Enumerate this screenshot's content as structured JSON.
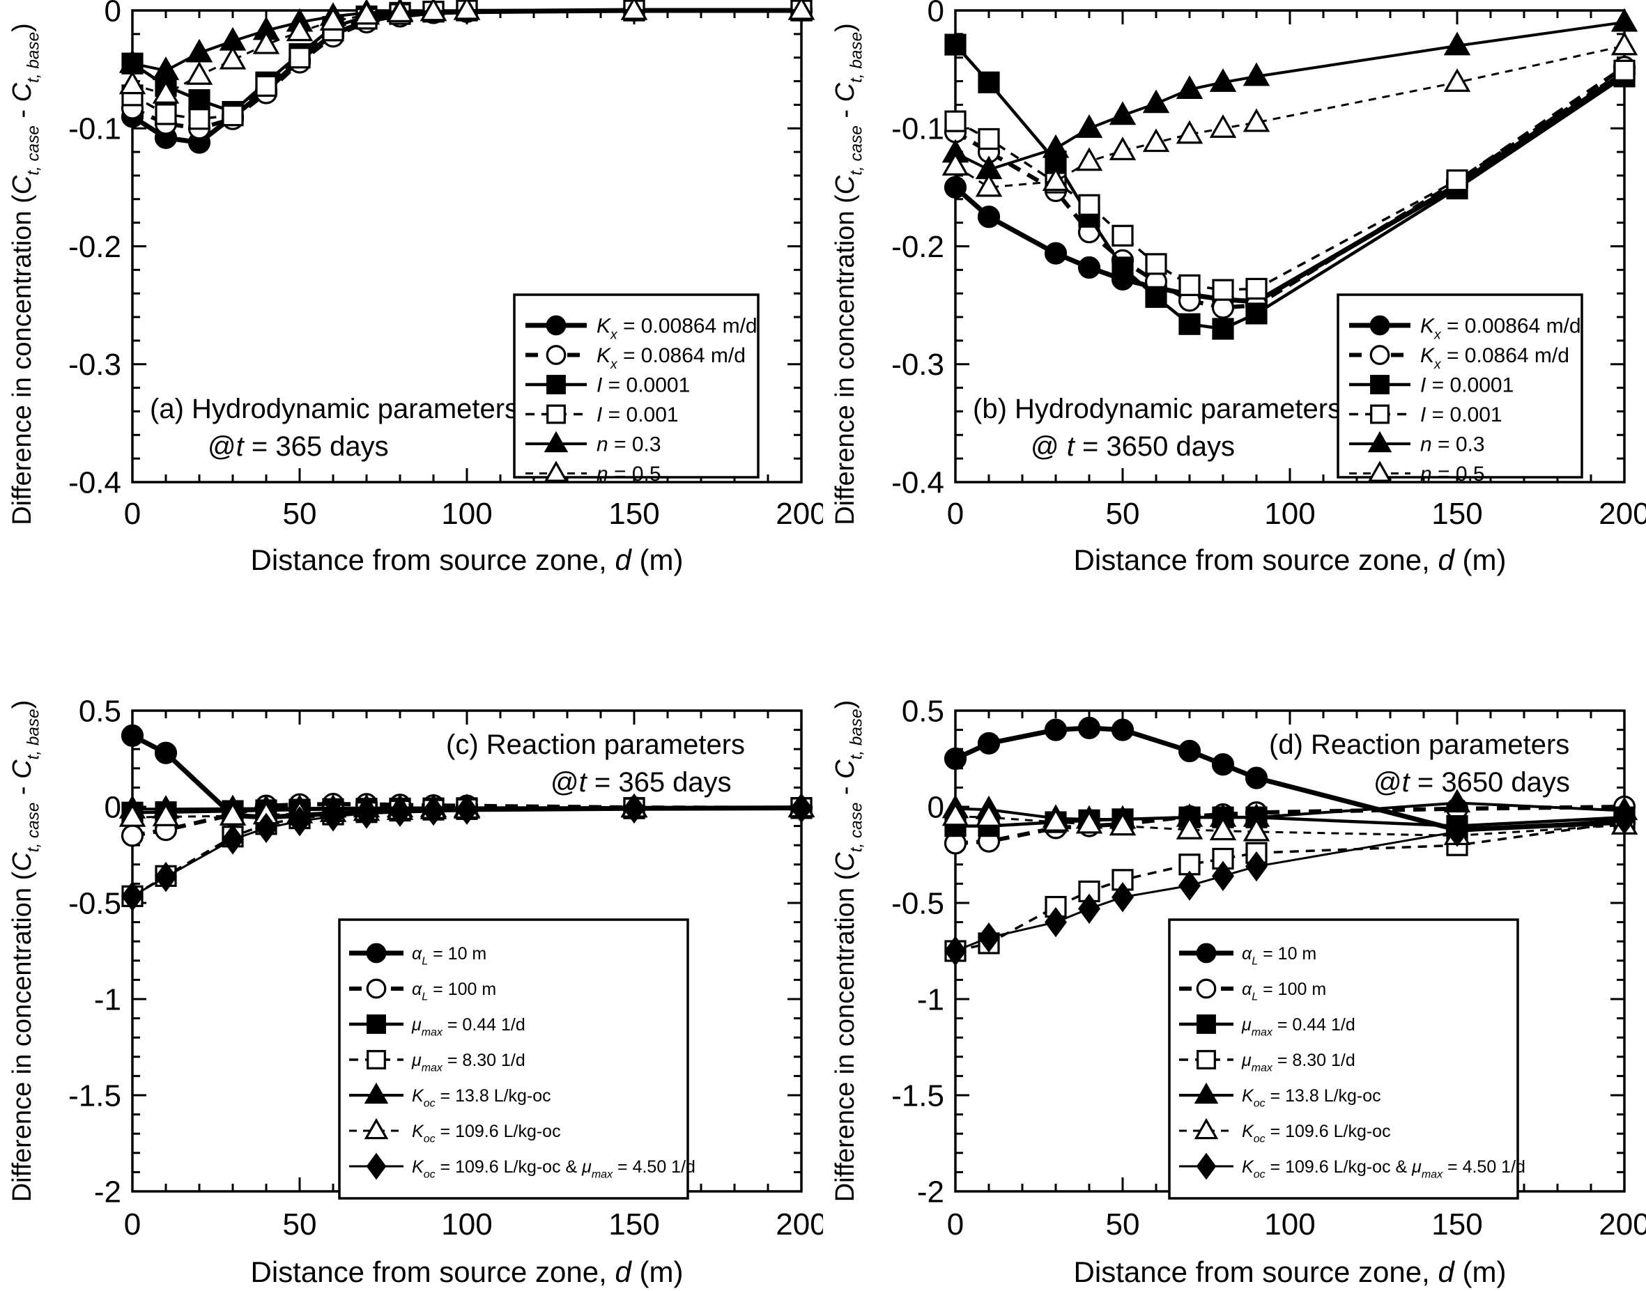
{
  "figure": {
    "background_color": "#ffffff",
    "ink_color": "#000000",
    "ylabel": "Difference in concentration (*C*_{t, case} - *C*_{t, base})",
    "xlabel": "Distance from source zone, *d* (m)"
  },
  "chart_data": [
    {
      "id": "a",
      "type": "line",
      "title_lines": [
        "(a) Hydrodynamic parameters",
        "@*t* = 365 days"
      ],
      "xlabel": "Distance from source zone, *d* (m)",
      "ylabel": "Difference in concentration (*C*_{t, case} - *C*_{t, base})",
      "xlim": [
        0,
        200
      ],
      "ylim": [
        -0.4,
        0
      ],
      "x_major_ticks": [
        0,
        50,
        100,
        150,
        200
      ],
      "x_minor_step": 10,
      "y_ticks": [
        {
          "v": 0,
          "label": "0"
        },
        {
          "v": -0.1,
          "label": "-0.1"
        },
        {
          "v": -0.2,
          "label": "-0.2"
        },
        {
          "v": -0.3,
          "label": "-0.3"
        },
        {
          "v": -0.4,
          "label": "-0.4"
        }
      ],
      "y_minor_step": 0.02,
      "grid": false,
      "legend_position": "inside-lower-right",
      "x": [
        0,
        10,
        20,
        30,
        40,
        50,
        60,
        70,
        80,
        90,
        100,
        150,
        200
      ],
      "series": [
        {
          "name": "*K*_{x} = 0.00864 m/d",
          "marker": "circle-filled",
          "line": "solid-thick",
          "y": [
            -0.09,
            -0.108,
            -0.112,
            -0.09,
            -0.068,
            -0.042,
            -0.02,
            -0.009,
            -0.004,
            -0.002,
            -0.001,
            0,
            0
          ]
        },
        {
          "name": "*K*_{x} = 0.0864 m/d",
          "marker": "circle-open",
          "line": "dashed-thick",
          "y": [
            -0.083,
            -0.096,
            -0.1,
            -0.092,
            -0.07,
            -0.044,
            -0.022,
            -0.01,
            -0.005,
            -0.002,
            -0.001,
            0,
            0
          ]
        },
        {
          "name": "*I* = 0.0001",
          "marker": "square-filled",
          "line": "solid",
          "y": [
            -0.045,
            -0.064,
            -0.076,
            -0.086,
            -0.061,
            -0.037,
            -0.014,
            -0.005,
            -0.002,
            -0.001,
            0,
            0,
            0
          ]
        },
        {
          "name": "*I* = 0.001",
          "marker": "square-open",
          "line": "dashed",
          "y": [
            -0.072,
            -0.088,
            -0.092,
            -0.089,
            -0.064,
            -0.04,
            -0.017,
            -0.007,
            -0.003,
            -0.001,
            0,
            0,
            0
          ]
        },
        {
          "name": "*n* = 0.3",
          "marker": "triangle-filled",
          "line": "solid-med",
          "y": [
            -0.045,
            -0.051,
            -0.036,
            -0.026,
            -0.017,
            -0.01,
            -0.005,
            -0.002,
            -0.001,
            -0.001,
            0,
            0,
            0
          ]
        },
        {
          "name": "*n* = 0.5",
          "marker": "triangle-open",
          "line": "dashed-thin",
          "y": [
            -0.063,
            -0.071,
            -0.055,
            -0.042,
            -0.029,
            -0.018,
            -0.009,
            -0.004,
            -0.002,
            -0.001,
            0,
            0,
            0
          ]
        }
      ]
    },
    {
      "id": "b",
      "type": "line",
      "title_lines": [
        "(b) Hydrodynamic parameters",
        "@ *t* = 3650 days"
      ],
      "xlabel": "Distance from source zone, *d* (m)",
      "ylabel": "Difference in concentration (*C*_{t, case} - *C*_{t, base})",
      "xlim": [
        0,
        200
      ],
      "ylim": [
        -0.4,
        0
      ],
      "x_major_ticks": [
        0,
        50,
        100,
        150,
        200
      ],
      "x_minor_step": 10,
      "y_ticks": [
        {
          "v": 0,
          "label": "0"
        },
        {
          "v": -0.1,
          "label": "-0.1"
        },
        {
          "v": -0.2,
          "label": "-0.2"
        },
        {
          "v": -0.3,
          "label": "-0.3"
        },
        {
          "v": -0.4,
          "label": "-0.4"
        }
      ],
      "y_minor_step": 0.02,
      "grid": false,
      "legend_position": "inside-lower-right",
      "x": [
        0,
        10,
        30,
        40,
        50,
        60,
        70,
        80,
        90,
        150,
        200
      ],
      "series": [
        {
          "name": "*K*_{x} = 0.00864 m/d",
          "marker": "circle-filled",
          "line": "solid-thick",
          "y": [
            -0.15,
            -0.175,
            -0.206,
            -0.218,
            -0.228,
            -0.235,
            -0.241,
            -0.245,
            -0.247,
            -0.148,
            -0.053
          ]
        },
        {
          "name": "*K*_{x} = 0.0864 m/d",
          "marker": "circle-open",
          "line": "dashed-thick",
          "y": [
            -0.103,
            -0.12,
            -0.153,
            -0.188,
            -0.212,
            -0.23,
            -0.246,
            -0.252,
            -0.25,
            -0.145,
            -0.048
          ]
        },
        {
          "name": "*I* = 0.0001",
          "marker": "square-filled",
          "line": "solid",
          "y": [
            -0.029,
            -0.061,
            -0.128,
            -0.175,
            -0.218,
            -0.243,
            -0.266,
            -0.27,
            -0.257,
            -0.151,
            -0.056
          ]
        },
        {
          "name": "*I* = 0.001",
          "marker": "square-open",
          "line": "dashed",
          "y": [
            -0.094,
            -0.109,
            -0.146,
            -0.165,
            -0.191,
            -0.215,
            -0.233,
            -0.237,
            -0.236,
            -0.144,
            -0.051
          ]
        },
        {
          "name": "*n* = 0.3",
          "marker": "triangle-filled",
          "line": "solid-med",
          "y": [
            -0.121,
            -0.135,
            -0.117,
            -0.1,
            -0.089,
            -0.079,
            -0.067,
            -0.061,
            -0.056,
            -0.03,
            -0.01
          ]
        },
        {
          "name": "*n* = 0.5",
          "marker": "triangle-open",
          "line": "dashed-thin",
          "y": [
            -0.132,
            -0.15,
            -0.145,
            -0.128,
            -0.119,
            -0.112,
            -0.105,
            -0.1,
            -0.095,
            -0.061,
            -0.03
          ]
        }
      ]
    },
    {
      "id": "c",
      "type": "line",
      "title_lines": [
        "(c) Reaction parameters",
        "@*t* = 365 days"
      ],
      "xlabel": "Distance from source zone, *d* (m)",
      "ylabel": "Difference in concentration (*C*_{t, case} - *C*_{t, base})",
      "xlim": [
        0,
        200
      ],
      "ylim": [
        -2,
        0.5
      ],
      "x_major_ticks": [
        0,
        50,
        100,
        150,
        200
      ],
      "x_minor_step": 10,
      "y_ticks": [
        {
          "v": 0.5,
          "label": "0.5"
        },
        {
          "v": 0,
          "label": "0"
        },
        {
          "v": -0.5,
          "label": "-0.5"
        },
        {
          "v": -1,
          "label": "-1"
        },
        {
          "v": -1.5,
          "label": "-1.5"
        },
        {
          "v": -2,
          "label": "-2"
        }
      ],
      "y_minor_step": 0.1,
      "grid": false,
      "legend_position": "inside-lower-center",
      "x": [
        0,
        10,
        30,
        40,
        50,
        60,
        70,
        80,
        90,
        100,
        150,
        200
      ],
      "series": [
        {
          "name": "*α*_{L} = 10 m",
          "marker": "circle-filled",
          "line": "solid-thick",
          "y": [
            0.37,
            0.28,
            -0.045,
            -0.055,
            -0.045,
            -0.035,
            -0.028,
            -0.022,
            -0.018,
            -0.014,
            -0.008,
            -0.006
          ]
        },
        {
          "name": "*α*_{L} = 100 m",
          "marker": "circle-open",
          "line": "dashed-thick",
          "y": [
            -0.15,
            -0.12,
            -0.04,
            0.005,
            0.012,
            0.014,
            0.013,
            0.01,
            0.007,
            0.005,
            -0.004,
            -0.006
          ]
        },
        {
          "name": "*μ*_{max} = 0.44 1/d",
          "marker": "square-filled",
          "line": "solid",
          "y": [
            -0.03,
            -0.028,
            -0.022,
            -0.018,
            -0.015,
            -0.012,
            -0.01,
            -0.009,
            -0.008,
            -0.007,
            -0.006,
            -0.006
          ]
        },
        {
          "name": "*μ*_{max} = 8.30 1/d",
          "marker": "square-open",
          "line": "dashed",
          "y": [
            -0.465,
            -0.36,
            -0.155,
            -0.09,
            -0.06,
            -0.04,
            -0.028,
            -0.02,
            -0.015,
            -0.012,
            -0.008,
            -0.007
          ]
        },
        {
          "name": "*K*_{oc} = 13.8 L/kg-oc",
          "marker": "triangle-filled",
          "line": "solid-med",
          "y": [
            -0.012,
            -0.012,
            -0.01,
            -0.009,
            -0.008,
            -0.007,
            -0.006,
            -0.006,
            -0.005,
            -0.005,
            -0.004,
            -0.004
          ]
        },
        {
          "name": "*K*_{oc} = 109.6 L/kg-oc",
          "marker": "triangle-open",
          "line": "dashed-thin",
          "y": [
            -0.055,
            -0.052,
            -0.048,
            -0.042,
            -0.037,
            -0.03,
            -0.024,
            -0.019,
            -0.015,
            -0.012,
            -0.007,
            -0.006
          ]
        },
        {
          "name": "*K*_{oc} = 109.6 L/kg-oc & *μ*_{max} = 4.50 1/d",
          "marker": "diamond-filled",
          "line": "solid-thin",
          "y": [
            -0.465,
            -0.365,
            -0.17,
            -0.11,
            -0.075,
            -0.05,
            -0.036,
            -0.026,
            -0.02,
            -0.015,
            -0.009,
            -0.007
          ]
        }
      ]
    },
    {
      "id": "d",
      "type": "line",
      "title_lines": [
        "(d) Reaction parameters",
        "@*t* = 3650 days"
      ],
      "xlabel": "Distance from source zone, *d* (m)",
      "ylabel": "Difference in concentration (*C*_{t, case} - *C*_{t, base})",
      "xlim": [
        0,
        200
      ],
      "ylim": [
        -2,
        0.5
      ],
      "x_major_ticks": [
        0,
        50,
        100,
        150,
        200
      ],
      "x_minor_step": 10,
      "y_ticks": [
        {
          "v": 0.5,
          "label": "0.5"
        },
        {
          "v": 0,
          "label": "0"
        },
        {
          "v": -0.5,
          "label": "-0.5"
        },
        {
          "v": -1,
          "label": "-1"
        },
        {
          "v": -1.5,
          "label": "-1.5"
        },
        {
          "v": -2,
          "label": "-2"
        }
      ],
      "y_minor_step": 0.1,
      "grid": false,
      "legend_position": "inside-lower-center",
      "x": [
        0,
        10,
        30,
        40,
        50,
        70,
        80,
        90,
        150,
        200
      ],
      "series": [
        {
          "name": "*α*_{L} = 10 m",
          "marker": "circle-filled",
          "line": "solid-thick",
          "y": [
            0.25,
            0.33,
            0.4,
            0.41,
            0.4,
            0.29,
            0.22,
            0.15,
            -0.12,
            -0.08
          ]
        },
        {
          "name": "*α*_{L} = 100 m",
          "marker": "circle-open",
          "line": "dashed-thick",
          "y": [
            -0.19,
            -0.18,
            -0.11,
            -0.1,
            -0.09,
            -0.05,
            -0.04,
            -0.03,
            -0.01,
            0.0
          ]
        },
        {
          "name": "*μ*_{max} = 0.44 1/d",
          "marker": "square-filled",
          "line": "solid",
          "y": [
            -0.1,
            -0.1,
            -0.08,
            -0.07,
            -0.065,
            -0.055,
            -0.055,
            -0.055,
            -0.1,
            -0.055
          ]
        },
        {
          "name": "*μ*_{max} = 8.30 1/d",
          "marker": "square-open",
          "line": "dashed",
          "y": [
            -0.75,
            -0.71,
            -0.52,
            -0.44,
            -0.38,
            -0.3,
            -0.27,
            -0.24,
            -0.2,
            -0.08
          ]
        },
        {
          "name": "*K*_{oc} = 13.8 L/kg-oc",
          "marker": "triangle-filled",
          "line": "solid-med",
          "y": [
            -0.01,
            -0.015,
            -0.06,
            -0.065,
            -0.065,
            -0.055,
            -0.055,
            -0.055,
            0.02,
            -0.02
          ]
        },
        {
          "name": "*K*_{oc} = 109.6 L/kg-oc",
          "marker": "triangle-open",
          "line": "dashed-thin",
          "y": [
            -0.05,
            -0.055,
            -0.08,
            -0.09,
            -0.1,
            -0.12,
            -0.125,
            -0.13,
            -0.15,
            -0.095
          ]
        },
        {
          "name": "*K*_{oc} = 109.6 L/kg-oc & *μ*_{max} = 4.50 1/d",
          "marker": "diamond-filled",
          "line": "solid-thin",
          "y": [
            -0.75,
            -0.68,
            -0.6,
            -0.53,
            -0.47,
            -0.41,
            -0.36,
            -0.31,
            -0.13,
            -0.065
          ]
        }
      ]
    }
  ]
}
